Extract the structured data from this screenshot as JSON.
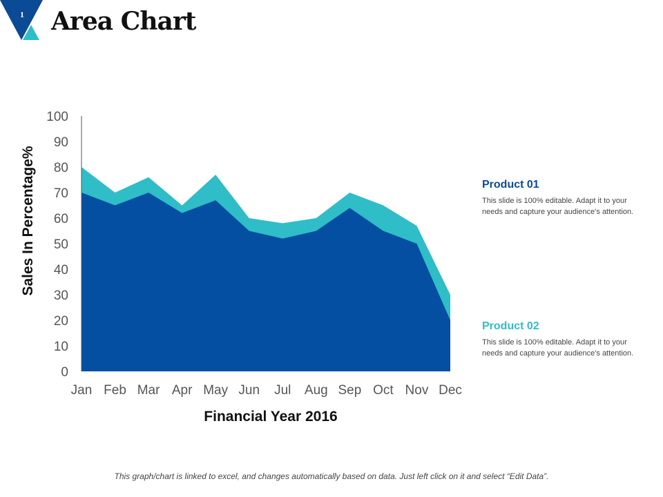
{
  "slide": {
    "number": "1",
    "title": "Area Chart",
    "footer": "This graph/chart is linked to excel, and changes automatically based on data. Just left click on it and select “Edit Data”."
  },
  "colors": {
    "product01": "#054FA2",
    "product02": "#2FBDC8",
    "badge_dark": "#0B4A95",
    "badge_light": "#2FBDC8"
  },
  "legend": [
    {
      "title": "Product 01",
      "description": "This slide is 100% editable. Adapt it to your needs and capture your audience's attention."
    },
    {
      "title": "Product 02",
      "description": "This slide is 100% editable. Adapt it to your needs and capture your audience's attention."
    }
  ],
  "chart_data": {
    "type": "area",
    "title": "",
    "xlabel": "Financial Year 2016",
    "ylabel": "Sales In Percentage%",
    "ylim": [
      0,
      100
    ],
    "yticks": [
      0,
      10,
      20,
      30,
      40,
      50,
      60,
      70,
      80,
      90,
      100
    ],
    "grid": false,
    "categories": [
      "Jan",
      "Feb",
      "Mar",
      "Apr",
      "May",
      "Jun",
      "Jul",
      "Aug",
      "Sep",
      "Oct",
      "Nov",
      "Dec"
    ],
    "series": [
      {
        "name": "Product 01",
        "values": [
          70,
          65,
          70,
          62,
          67,
          55,
          52,
          55,
          64,
          55,
          50,
          20
        ]
      },
      {
        "name": "Product 02",
        "values": [
          80,
          70,
          76,
          65,
          77,
          60,
          58,
          60,
          70,
          65,
          57,
          30
        ]
      }
    ]
  }
}
